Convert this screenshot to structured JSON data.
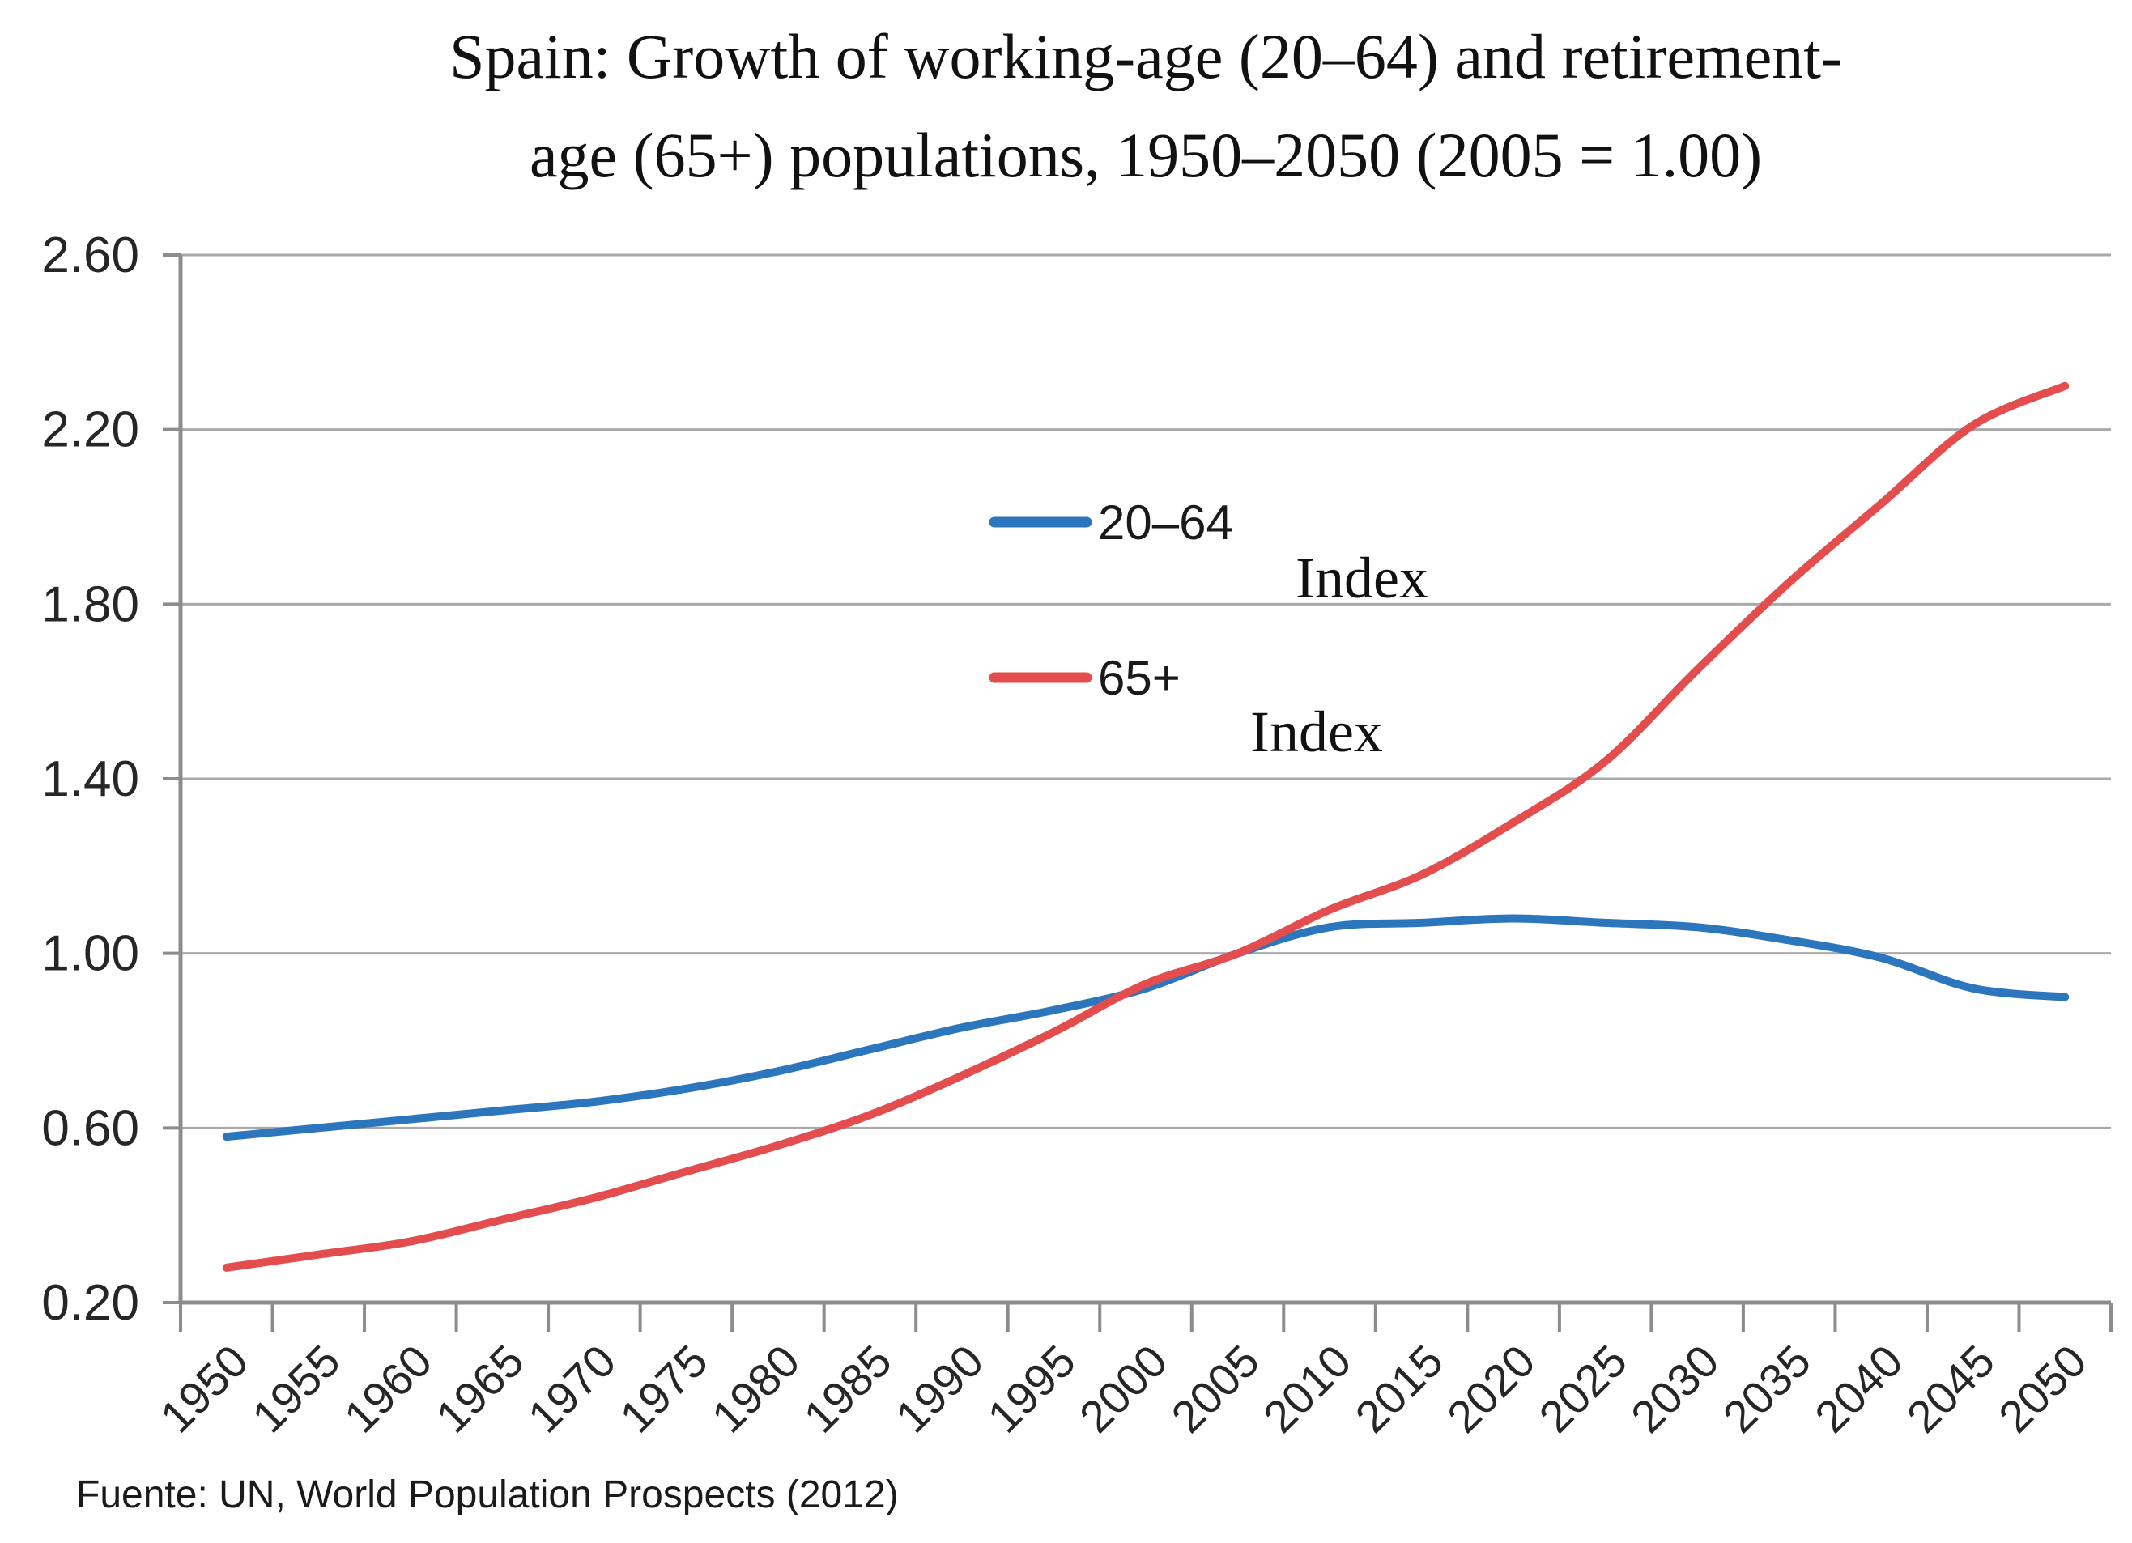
{
  "figure": {
    "title_line1": "Spain: Growth of working-age (20–64) and retirement-",
    "title_line2": "age (65+) populations, 1950–2050 (2005 = 1.00)",
    "source_note": "Fuente: UN, World Population Prospects (2012)"
  },
  "legend": {
    "position": "inside-upper-middle",
    "series1": {
      "label": "20–64",
      "annotation": "Index",
      "color": "#2C76BE"
    },
    "series2": {
      "label": "65+",
      "annotation": "Index",
      "color": "#E44D4D"
    }
  },
  "chart_data": {
    "type": "line",
    "title": "Spain: Growth of working-age (20–64) and retirement-age (65+) populations, 1950–2050 (2005 = 1.00)",
    "xlabel": "",
    "ylabel": "",
    "categories": [
      1950,
      1955,
      1960,
      1965,
      1970,
      1975,
      1980,
      1985,
      1990,
      1995,
      2000,
      2005,
      2010,
      2015,
      2020,
      2025,
      2030,
      2035,
      2040,
      2045,
      2050
    ],
    "series": [
      {
        "name": "20–64",
        "color": "#2C76BE",
        "values": [
          0.58,
          0.6,
          0.62,
          0.64,
          0.66,
          0.69,
          0.73,
          0.78,
          0.83,
          0.87,
          0.92,
          1.0,
          1.06,
          1.07,
          1.08,
          1.07,
          1.06,
          1.03,
          0.99,
          0.92,
          0.9
        ]
      },
      {
        "name": "65+",
        "color": "#E44D4D",
        "values": [
          0.28,
          0.31,
          0.34,
          0.39,
          0.44,
          0.5,
          0.56,
          0.63,
          0.72,
          0.82,
          0.93,
          1.0,
          1.1,
          1.18,
          1.3,
          1.44,
          1.65,
          1.85,
          2.03,
          2.21,
          2.3
        ]
      }
    ],
    "ylim": [
      0.2,
      2.6
    ],
    "yticks": [
      "2.60",
      "2.20",
      "1.80",
      "1.40",
      "1.00",
      "0.60",
      "0.20"
    ],
    "grid": true,
    "smooth": true,
    "legend_position": "inside top-center",
    "colors": {
      "gridline": "#A9A9A9",
      "axis": "#8C8C8C",
      "tick": "#8C8C8C",
      "text": "#262626"
    }
  }
}
